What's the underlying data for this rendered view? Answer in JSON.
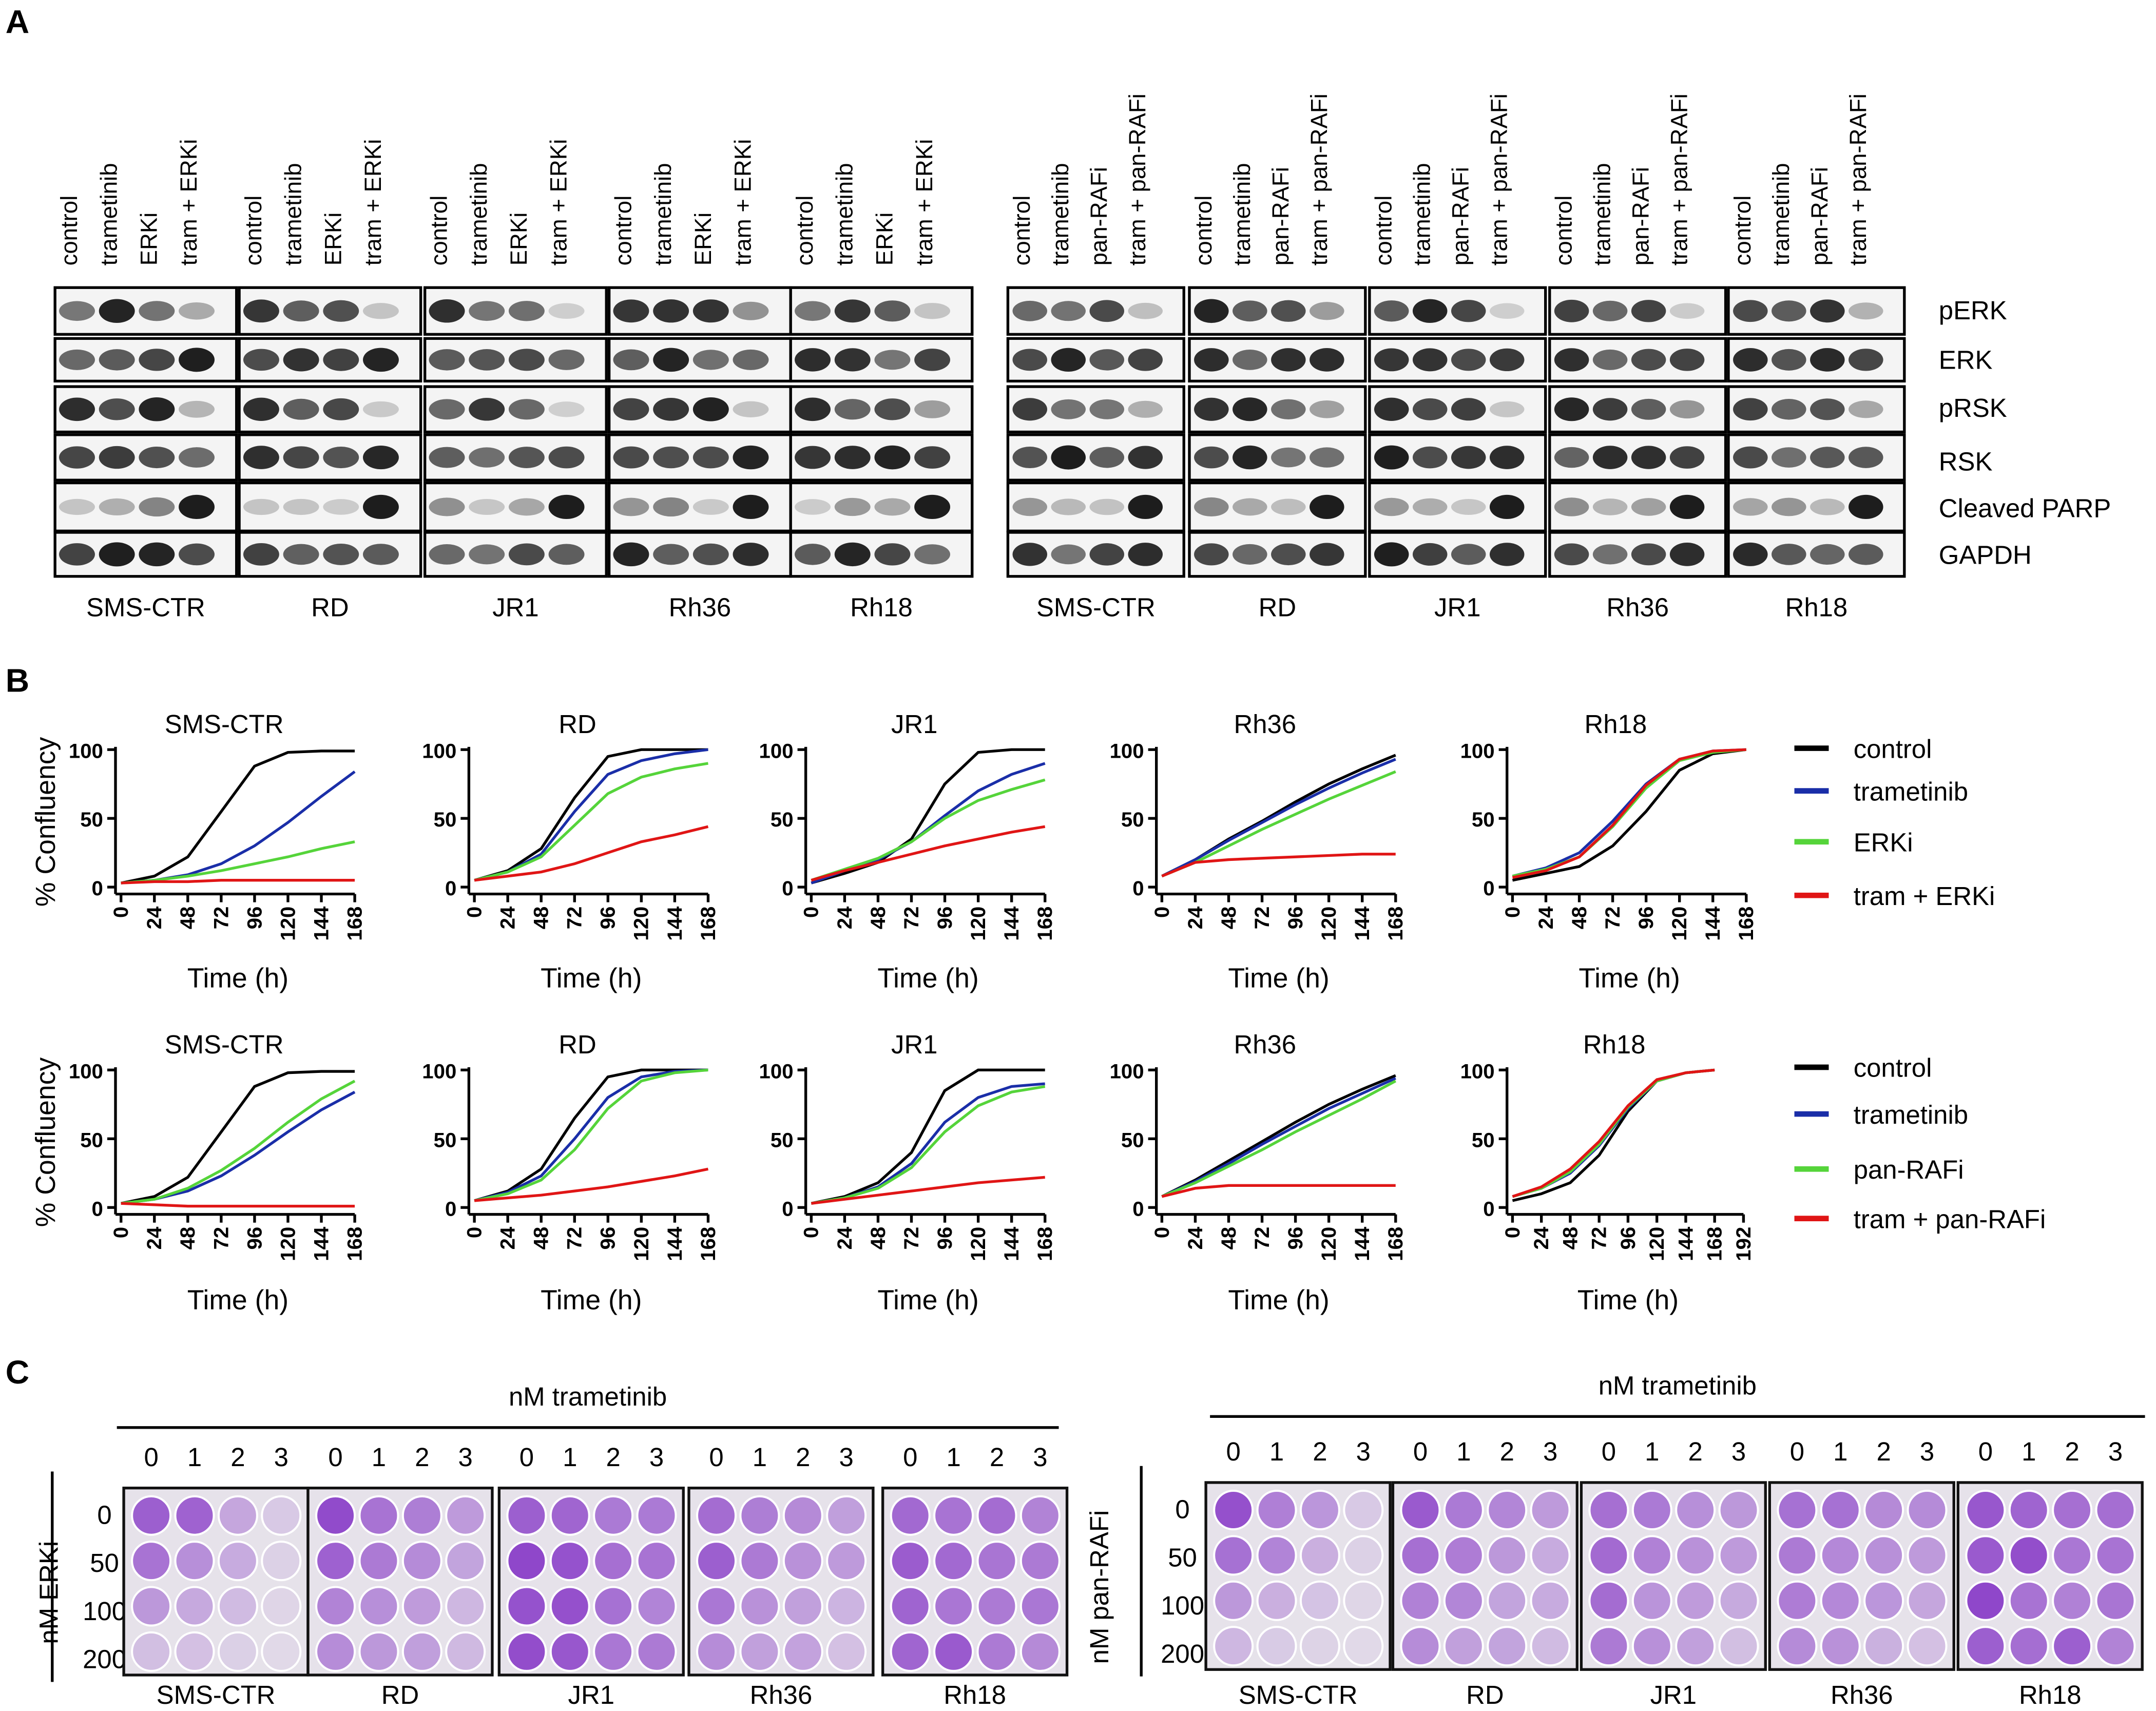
{
  "panel_a": {
    "label": "A",
    "blots": [
      {
        "groups": [
          {
            "name": "SMS-CTR",
            "lanes": [
              "control",
              "trametinib",
              "ERKi",
              "tram + ERKi"
            ]
          },
          {
            "name": "RD",
            "lanes": [
              "control",
              "trametinib",
              "ERKi",
              "tram + ERKi"
            ]
          },
          {
            "name": "JR1",
            "lanes": [
              "control",
              "trametinib",
              "ERKi",
              "tram + ERKi"
            ]
          },
          {
            "name": "Rh36",
            "lanes": [
              "control",
              "trametinib",
              "ERKi",
              "tram + ERKi"
            ]
          },
          {
            "name": "Rh18",
            "lanes": [
              "control",
              "trametinib",
              "ERKi",
              "tram + ERKi"
            ]
          }
        ]
      },
      {
        "groups": [
          {
            "name": "SMS-CTR",
            "lanes": [
              "control",
              "trametinib",
              "pan-RAFi",
              "tram + pan-RAFi"
            ]
          },
          {
            "name": "RD",
            "lanes": [
              "control",
              "trametinib",
              "pan-RAFi",
              "tram + pan-RAFi"
            ]
          },
          {
            "name": "JR1",
            "lanes": [
              "control",
              "trametinib",
              "pan-RAFi",
              "tram + pan-RAFi"
            ]
          },
          {
            "name": "Rh36",
            "lanes": [
              "control",
              "trametinib",
              "pan-RAFi",
              "tram + pan-RAFi"
            ]
          },
          {
            "name": "Rh18",
            "lanes": [
              "control",
              "trametinib",
              "pan-RAFi",
              "tram + pan-RAFi"
            ]
          }
        ]
      }
    ],
    "rows": [
      "pERK",
      "ERK",
      "pRSK",
      "RSK",
      "Cleaved PARP",
      "GAPDH"
    ]
  },
  "panel_b": {
    "label": "B"
  },
  "chart_data": [
    {
      "type": "line",
      "title": "SMS-CTR",
      "x_label": "Time (h)",
      "y_label": "% Confluency",
      "x": [
        0,
        24,
        48,
        72,
        96,
        120,
        144,
        168
      ],
      "xlim": [
        0,
        168
      ],
      "xticks": [
        0,
        24,
        48,
        72,
        96,
        120,
        144,
        168
      ],
      "ylim": [
        -5,
        100
      ],
      "yticks": [
        0,
        50,
        100
      ],
      "series": [
        {
          "color": "#000000",
          "values": [
            3,
            8,
            22,
            55,
            88,
            98,
            99,
            99
          ]
        },
        {
          "color": "#1a2ea8",
          "values": [
            3,
            5,
            9,
            17,
            30,
            47,
            66,
            84
          ]
        },
        {
          "color": "#55d43a",
          "values": [
            3,
            5,
            8,
            12,
            17,
            22,
            28,
            33
          ]
        },
        {
          "color": "#e01515",
          "values": [
            3,
            4,
            4,
            5,
            5,
            5,
            5,
            5
          ]
        }
      ]
    },
    {
      "type": "line",
      "title": "RD",
      "x_label": "Time (h)",
      "x": [
        0,
        24,
        48,
        72,
        96,
        120,
        144,
        168
      ],
      "xlim": [
        0,
        168
      ],
      "xticks": [
        0,
        24,
        48,
        72,
        96,
        120,
        144,
        168
      ],
      "ylim": [
        -5,
        100
      ],
      "yticks": [
        0,
        50,
        100
      ],
      "series": [
        {
          "color": "#000000",
          "values": [
            5,
            12,
            28,
            65,
            95,
            100,
            100,
            100
          ]
        },
        {
          "color": "#1a2ea8",
          "values": [
            5,
            11,
            24,
            55,
            82,
            92,
            97,
            100
          ]
        },
        {
          "color": "#55d43a",
          "values": [
            5,
            11,
            22,
            45,
            68,
            80,
            86,
            90
          ]
        },
        {
          "color": "#e01515",
          "values": [
            5,
            8,
            11,
            17,
            25,
            33,
            38,
            44
          ]
        }
      ]
    },
    {
      "type": "line",
      "title": "JR1",
      "x_label": "Time (h)",
      "x": [
        0,
        24,
        48,
        72,
        96,
        120,
        144,
        168
      ],
      "xlim": [
        0,
        168
      ],
      "xticks": [
        0,
        24,
        48,
        72,
        96,
        120,
        144,
        168
      ],
      "ylim": [
        -5,
        100
      ],
      "yticks": [
        0,
        50,
        100
      ],
      "series": [
        {
          "color": "#000000",
          "values": [
            3,
            10,
            18,
            35,
            75,
            98,
            100,
            100
          ]
        },
        {
          "color": "#1a2ea8",
          "values": [
            3,
            12,
            20,
            33,
            52,
            70,
            82,
            90
          ]
        },
        {
          "color": "#55d43a",
          "values": [
            5,
            13,
            21,
            33,
            50,
            63,
            71,
            78
          ]
        },
        {
          "color": "#e01515",
          "values": [
            5,
            12,
            18,
            24,
            30,
            35,
            40,
            44
          ]
        }
      ]
    },
    {
      "type": "line",
      "title": "Rh36",
      "x_label": "Time (h)",
      "x": [
        0,
        24,
        48,
        72,
        96,
        120,
        144,
        168
      ],
      "xlim": [
        0,
        168
      ],
      "xticks": [
        0,
        24,
        48,
        72,
        96,
        120,
        144,
        168
      ],
      "ylim": [
        -5,
        100
      ],
      "yticks": [
        0,
        50,
        100
      ],
      "series": [
        {
          "color": "#000000",
          "values": [
            8,
            20,
            35,
            48,
            62,
            75,
            86,
            96
          ]
        },
        {
          "color": "#1a2ea8",
          "values": [
            8,
            20,
            34,
            47,
            60,
            72,
            83,
            93
          ]
        },
        {
          "color": "#55d43a",
          "values": [
            8,
            18,
            30,
            42,
            53,
            64,
            74,
            84
          ]
        },
        {
          "color": "#e01515",
          "values": [
            8,
            18,
            20,
            21,
            22,
            23,
            24,
            24
          ]
        }
      ]
    },
    {
      "type": "line",
      "title": "Rh18",
      "x_label": "Time (h)",
      "x": [
        0,
        24,
        48,
        72,
        96,
        120,
        144,
        168
      ],
      "xlim": [
        0,
        168
      ],
      "xticks": [
        0,
        24,
        48,
        72,
        96,
        120,
        144,
        168
      ],
      "ylim": [
        -5,
        100
      ],
      "yticks": [
        0,
        50,
        100
      ],
      "series": [
        {
          "name": "control",
          "color": "#000000",
          "values": [
            5,
            10,
            15,
            30,
            55,
            85,
            97,
            100
          ]
        },
        {
          "name": "trametinib",
          "color": "#1a2ea8",
          "values": [
            8,
            14,
            25,
            48,
            75,
            93,
            99,
            100
          ]
        },
        {
          "name": "ERKi",
          "color": "#55d43a",
          "values": [
            8,
            13,
            22,
            44,
            72,
            92,
            98,
            100
          ]
        },
        {
          "name": "tram + ERKi",
          "color": "#e01515",
          "values": [
            7,
            12,
            22,
            45,
            74,
            93,
            99,
            100
          ]
        }
      ]
    },
    {
      "type": "line",
      "title": "SMS-CTR",
      "x_label": "Time (h)",
      "y_label": "% Confluency",
      "x": [
        0,
        24,
        48,
        72,
        96,
        120,
        144,
        168
      ],
      "xlim": [
        0,
        168
      ],
      "xticks": [
        0,
        24,
        48,
        72,
        96,
        120,
        144,
        168
      ],
      "ylim": [
        -5,
        100
      ],
      "yticks": [
        0,
        50,
        100
      ],
      "series": [
        {
          "color": "#000000",
          "values": [
            3,
            8,
            22,
            55,
            88,
            98,
            99,
            99
          ]
        },
        {
          "color": "#1a2ea8",
          "values": [
            3,
            6,
            12,
            23,
            38,
            55,
            71,
            84
          ]
        },
        {
          "color": "#55d43a",
          "values": [
            3,
            6,
            14,
            27,
            43,
            62,
            79,
            92
          ]
        },
        {
          "color": "#e01515",
          "values": [
            3,
            2,
            1,
            1,
            1,
            1,
            1,
            1
          ]
        }
      ]
    },
    {
      "type": "line",
      "title": "RD",
      "x_label": "Time (h)",
      "x": [
        0,
        24,
        48,
        72,
        96,
        120,
        144,
        168
      ],
      "xlim": [
        0,
        168
      ],
      "xticks": [
        0,
        24,
        48,
        72,
        96,
        120,
        144,
        168
      ],
      "ylim": [
        -5,
        100
      ],
      "yticks": [
        0,
        50,
        100
      ],
      "series": [
        {
          "color": "#000000",
          "values": [
            5,
            12,
            28,
            65,
            95,
            100,
            100,
            100
          ]
        },
        {
          "color": "#1a2ea8",
          "values": [
            5,
            11,
            23,
            50,
            80,
            95,
            99,
            100
          ]
        },
        {
          "color": "#55d43a",
          "values": [
            5,
            10,
            20,
            42,
            72,
            92,
            98,
            100
          ]
        },
        {
          "color": "#e01515",
          "values": [
            5,
            7,
            9,
            12,
            15,
            19,
            23,
            28
          ]
        }
      ]
    },
    {
      "type": "line",
      "title": "JR1",
      "x_label": "Time (h)",
      "x": [
        0,
        24,
        48,
        72,
        96,
        120,
        144,
        168
      ],
      "xlim": [
        0,
        168
      ],
      "xticks": [
        0,
        24,
        48,
        72,
        96,
        120,
        144,
        168
      ],
      "ylim": [
        -5,
        100
      ],
      "yticks": [
        0,
        50,
        100
      ],
      "series": [
        {
          "color": "#000000",
          "values": [
            3,
            8,
            18,
            40,
            85,
            100,
            100,
            100
          ]
        },
        {
          "color": "#1a2ea8",
          "values": [
            3,
            7,
            15,
            32,
            62,
            80,
            88,
            90
          ]
        },
        {
          "color": "#55d43a",
          "values": [
            3,
            7,
            14,
            29,
            55,
            74,
            84,
            88
          ]
        },
        {
          "color": "#e01515",
          "values": [
            3,
            6,
            9,
            12,
            15,
            18,
            20,
            22
          ]
        }
      ]
    },
    {
      "type": "line",
      "title": "Rh36",
      "x_label": "Time (h)",
      "x": [
        0,
        24,
        48,
        72,
        96,
        120,
        144,
        168
      ],
      "xlim": [
        0,
        168
      ],
      "xticks": [
        0,
        24,
        48,
        72,
        96,
        120,
        144,
        168
      ],
      "ylim": [
        -5,
        100
      ],
      "yticks": [
        0,
        50,
        100
      ],
      "series": [
        {
          "color": "#000000",
          "values": [
            8,
            20,
            34,
            48,
            62,
            75,
            86,
            96
          ]
        },
        {
          "color": "#1a2ea8",
          "values": [
            8,
            19,
            32,
            46,
            59,
            72,
            83,
            94
          ]
        },
        {
          "color": "#55d43a",
          "values": [
            8,
            18,
            30,
            42,
            55,
            67,
            79,
            92
          ]
        },
        {
          "color": "#e01515",
          "values": [
            8,
            14,
            16,
            16,
            16,
            16,
            16,
            16
          ]
        }
      ]
    },
    {
      "type": "line",
      "title": "Rh18",
      "x_label": "Time (h)",
      "x": [
        0,
        24,
        48,
        72,
        96,
        120,
        144,
        168
      ],
      "xlim": [
        0,
        192
      ],
      "xticks": [
        0,
        24,
        48,
        72,
        96,
        120,
        144,
        168,
        192
      ],
      "ylim": [
        -5,
        100
      ],
      "yticks": [
        0,
        50,
        100
      ],
      "series": [
        {
          "name": "control",
          "color": "#000000",
          "values": [
            5,
            10,
            18,
            38,
            70,
            92,
            98,
            100
          ]
        },
        {
          "name": "trametinib",
          "color": "#1a2ea8",
          "values": [
            8,
            14,
            25,
            45,
            72,
            92,
            98,
            100
          ]
        },
        {
          "name": "pan-RAFi",
          "color": "#55d43a",
          "values": [
            8,
            14,
            26,
            46,
            73,
            92,
            98,
            100
          ]
        },
        {
          "name": "tram + pan-RAFi",
          "color": "#e01515",
          "values": [
            8,
            15,
            28,
            48,
            74,
            93,
            98,
            100
          ]
        }
      ]
    }
  ],
  "panel_c": {
    "label": "C",
    "plates": [
      {
        "x_label": "nM trametinib",
        "y_label": "nM ERKi",
        "row_doses": [
          0,
          50,
          100,
          200
        ],
        "groups": [
          {
            "name": "SMS-CTR",
            "col_doses": [
              0,
              1,
              2,
              3
            ]
          },
          {
            "name": "RD",
            "col_doses": [
              0,
              1,
              2,
              3
            ]
          },
          {
            "name": "JR1",
            "col_doses": [
              0,
              1,
              2,
              3
            ]
          },
          {
            "name": "Rh36",
            "col_doses": [
              0,
              1,
              2,
              3
            ]
          },
          {
            "name": "Rh18",
            "col_doses": [
              0,
              1,
              2,
              3
            ]
          }
        ]
      },
      {
        "x_label": "nM trametinib",
        "y_label": "nM pan-RAFi",
        "row_doses": [
          0,
          50,
          100,
          200
        ],
        "groups": [
          {
            "name": "SMS-CTR",
            "col_doses": [
              0,
              1,
              2,
              3
            ]
          },
          {
            "name": "RD",
            "col_doses": [
              0,
              1,
              2,
              3
            ]
          },
          {
            "name": "JR1",
            "col_doses": [
              0,
              1,
              2,
              3
            ]
          },
          {
            "name": "Rh36",
            "col_doses": [
              0,
              1,
              2,
              3
            ]
          },
          {
            "name": "Rh18",
            "col_doses": [
              0,
              1,
              2,
              3
            ]
          }
        ]
      }
    ]
  }
}
